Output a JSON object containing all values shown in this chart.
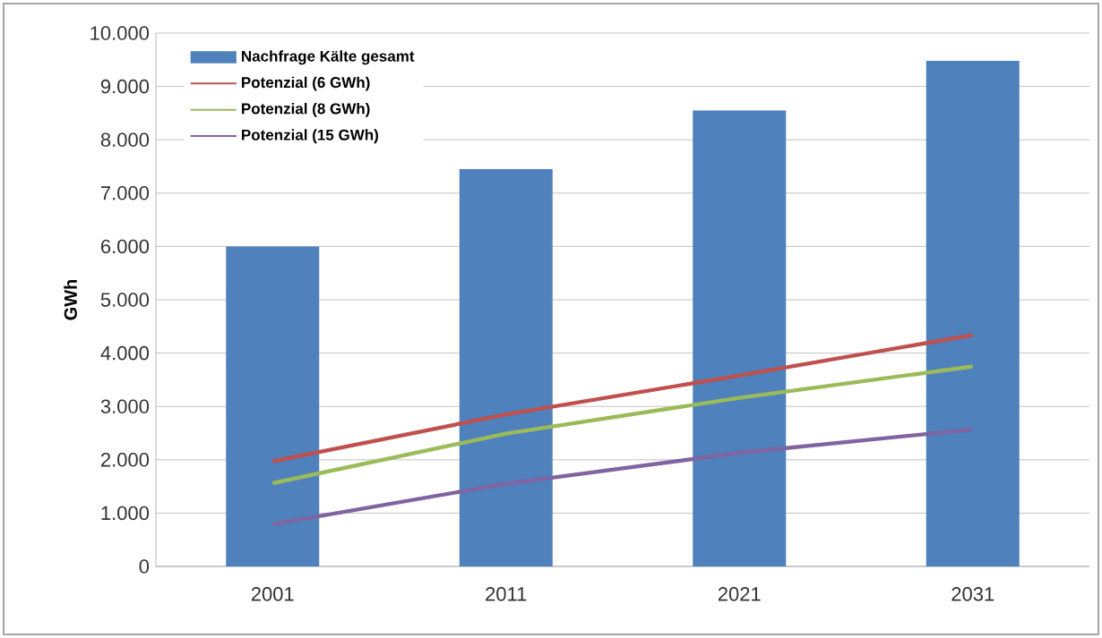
{
  "chart_data": {
    "type": "bar",
    "ylabel": "GWh",
    "categories": [
      "2001",
      "2011",
      "2021",
      "2031"
    ],
    "series": [
      {
        "name": "Nachfrage Kälte gesamt",
        "color": "#4f81bd",
        "values": [
          6000,
          7450,
          8550,
          9480
        ]
      },
      {
        "name": "Potenzial (6 GWh)",
        "type": "line",
        "color": "#c0504d",
        "values": [
          1970,
          2850,
          3580,
          4340
        ]
      },
      {
        "name": "Potenzial (8 GWh)",
        "type": "line",
        "color": "#9bbb59",
        "values": [
          1560,
          2490,
          3160,
          3750
        ]
      },
      {
        "name": "Potenzial (15 GWh)",
        "type": "line",
        "color": "#8064a2",
        "values": [
          790,
          1550,
          2130,
          2570
        ]
      }
    ],
    "ylim": [
      0,
      10000
    ],
    "yticks": [
      {
        "value": 0,
        "label": "0"
      },
      {
        "value": 1000,
        "label": "1.000"
      },
      {
        "value": 2000,
        "label": "2.000"
      },
      {
        "value": 3000,
        "label": "3.000"
      },
      {
        "value": 4000,
        "label": "4.000"
      },
      {
        "value": 5000,
        "label": "5.000"
      },
      {
        "value": 6000,
        "label": "6.000"
      },
      {
        "value": 7000,
        "label": "7.000"
      },
      {
        "value": 8000,
        "label": "8.000"
      },
      {
        "value": 9000,
        "label": "9.000"
      },
      {
        "value": 10000,
        "label": "10.000"
      }
    ],
    "grid": "y",
    "legend": "top left",
    "marker": "none",
    "line_style": "solid"
  }
}
